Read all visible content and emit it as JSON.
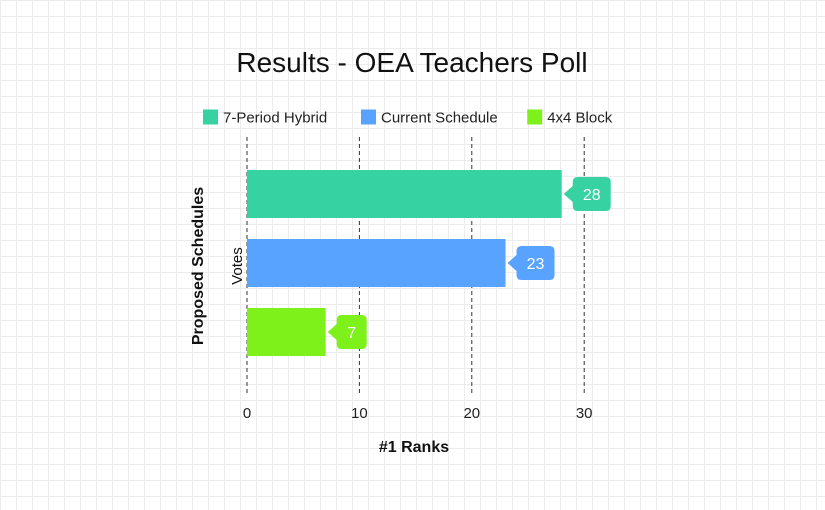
{
  "chart_data": {
    "type": "bar",
    "orientation": "horizontal",
    "title": "Results - OEA Teachers Poll",
    "xlabel": "#1 Ranks",
    "ylabel": "Proposed Schedules",
    "y_series_label": "Votes",
    "xlim": [
      0,
      32
    ],
    "xticks": [
      0,
      10,
      20,
      30
    ],
    "grid": "vertical dashed",
    "legend_position": "top",
    "series": [
      {
        "name": "7-Period Hybrid",
        "value": 28,
        "color": "#36d2a2"
      },
      {
        "name": "Current Schedule",
        "value": 23,
        "color": "#58a3ff"
      },
      {
        "name": "4x4 Block",
        "value": 7,
        "color": "#7ef11b"
      }
    ]
  }
}
